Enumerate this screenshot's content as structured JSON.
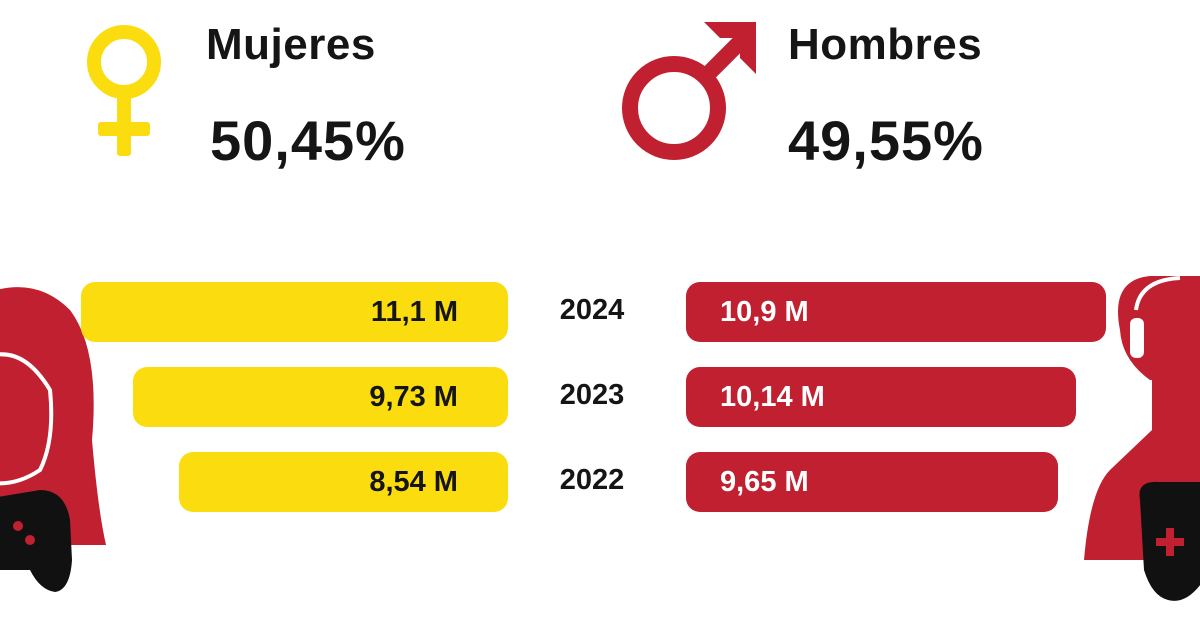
{
  "colors": {
    "female": "#FBDD0F",
    "male": "#C0202F",
    "text": "#151515"
  },
  "header": {
    "female": {
      "label": "Mujeres",
      "percent": "50,45%",
      "icon": "female-symbol-icon"
    },
    "male": {
      "label": "Hombres",
      "percent": "49,55%",
      "icon": "male-symbol-icon"
    }
  },
  "avatars": {
    "left": "female-gamer-icon",
    "right": "male-gamer-icon"
  },
  "chart_data": {
    "type": "bar",
    "orientation": "horizontal-diverging",
    "categories": [
      "2024",
      "2023",
      "2022"
    ],
    "series": [
      {
        "name": "Mujeres",
        "values": [
          11.1,
          9.73,
          8.54
        ],
        "labels": [
          "11,1 M",
          "9,73 M",
          "8,54 M"
        ],
        "color": "#FBDD0F"
      },
      {
        "name": "Hombres",
        "values": [
          10.9,
          10.14,
          9.65
        ],
        "labels": [
          "10,9 M",
          "10,14 M",
          "9,65 M"
        ],
        "color": "#C0202F"
      }
    ]
  }
}
